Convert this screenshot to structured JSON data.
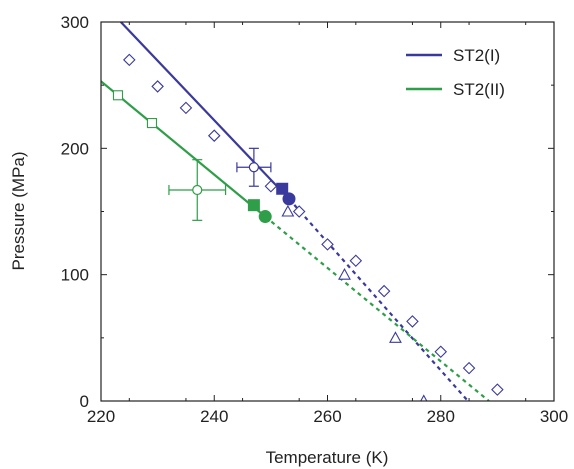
{
  "chart_data": {
    "type": "scatter",
    "title": "",
    "xlabel": "Temperature (K)",
    "ylabel": "Pressure (MPa)",
    "xlim": [
      220,
      300
    ],
    "ylim": [
      0,
      300
    ],
    "xticks": [
      "220",
      "240",
      "260",
      "280",
      "300"
    ],
    "yticks": [
      "0",
      "100",
      "200",
      "300"
    ],
    "legend": {
      "placement": "top-right",
      "entries": [
        {
          "label": "ST2(I)",
          "color": "#3a3a9c"
        },
        {
          "label": "ST2(II)",
          "color": "#2e9e48"
        }
      ]
    },
    "lines": [
      {
        "series": "ST2(I)",
        "style": "solid",
        "x": [
          223.5,
          253.2
        ],
        "y": [
          300,
          160
        ]
      },
      {
        "series": "ST2(I)",
        "style": "dashed",
        "x": [
          253.2,
          284.8
        ],
        "y": [
          160,
          0
        ]
      },
      {
        "series": "ST2(II)",
        "style": "solid",
        "x": [
          220,
          249.0
        ],
        "y": [
          253,
          146
        ]
      },
      {
        "series": "ST2(II)",
        "style": "dashed",
        "x": [
          249.0,
          288.5
        ],
        "y": [
          146,
          0
        ]
      }
    ],
    "series": [
      {
        "series": "ST2(I)",
        "marker": "diamond-open",
        "x": [
          225,
          230,
          235,
          240,
          250,
          255,
          260,
          265,
          270,
          275,
          280,
          285,
          290
        ],
        "y": [
          270,
          249,
          232,
          210,
          170,
          150,
          124,
          111,
          87,
          63,
          39,
          26,
          9
        ]
      },
      {
        "series": "ST2(I)",
        "marker": "triangle-open",
        "x": [
          253,
          263,
          272,
          277
        ],
        "y": [
          150,
          100,
          50,
          0
        ]
      },
      {
        "series": "ST2(I)",
        "marker": "square-filled",
        "x": [
          252
        ],
        "y": [
          168
        ]
      },
      {
        "series": "ST2(I)",
        "marker": "circle-filled",
        "x": [
          253.2
        ],
        "y": [
          160
        ]
      },
      {
        "series": "ST2(I)",
        "marker": "circle-open-errorbar",
        "x": [
          247
        ],
        "y": [
          185
        ],
        "xerr": 3,
        "yerr": 15
      },
      {
        "series": "ST2(II)",
        "marker": "square-open",
        "x": [
          223,
          229
        ],
        "y": [
          242,
          220
        ]
      },
      {
        "series": "ST2(II)",
        "marker": "square-filled",
        "x": [
          247
        ],
        "y": [
          155
        ]
      },
      {
        "series": "ST2(II)",
        "marker": "circle-filled",
        "x": [
          249
        ],
        "y": [
          146
        ]
      },
      {
        "series": "ST2(II)",
        "marker": "circle-open-errorbar",
        "x": [
          237
        ],
        "y": [
          167
        ],
        "xerr": 5,
        "yerr": 24
      }
    ]
  }
}
